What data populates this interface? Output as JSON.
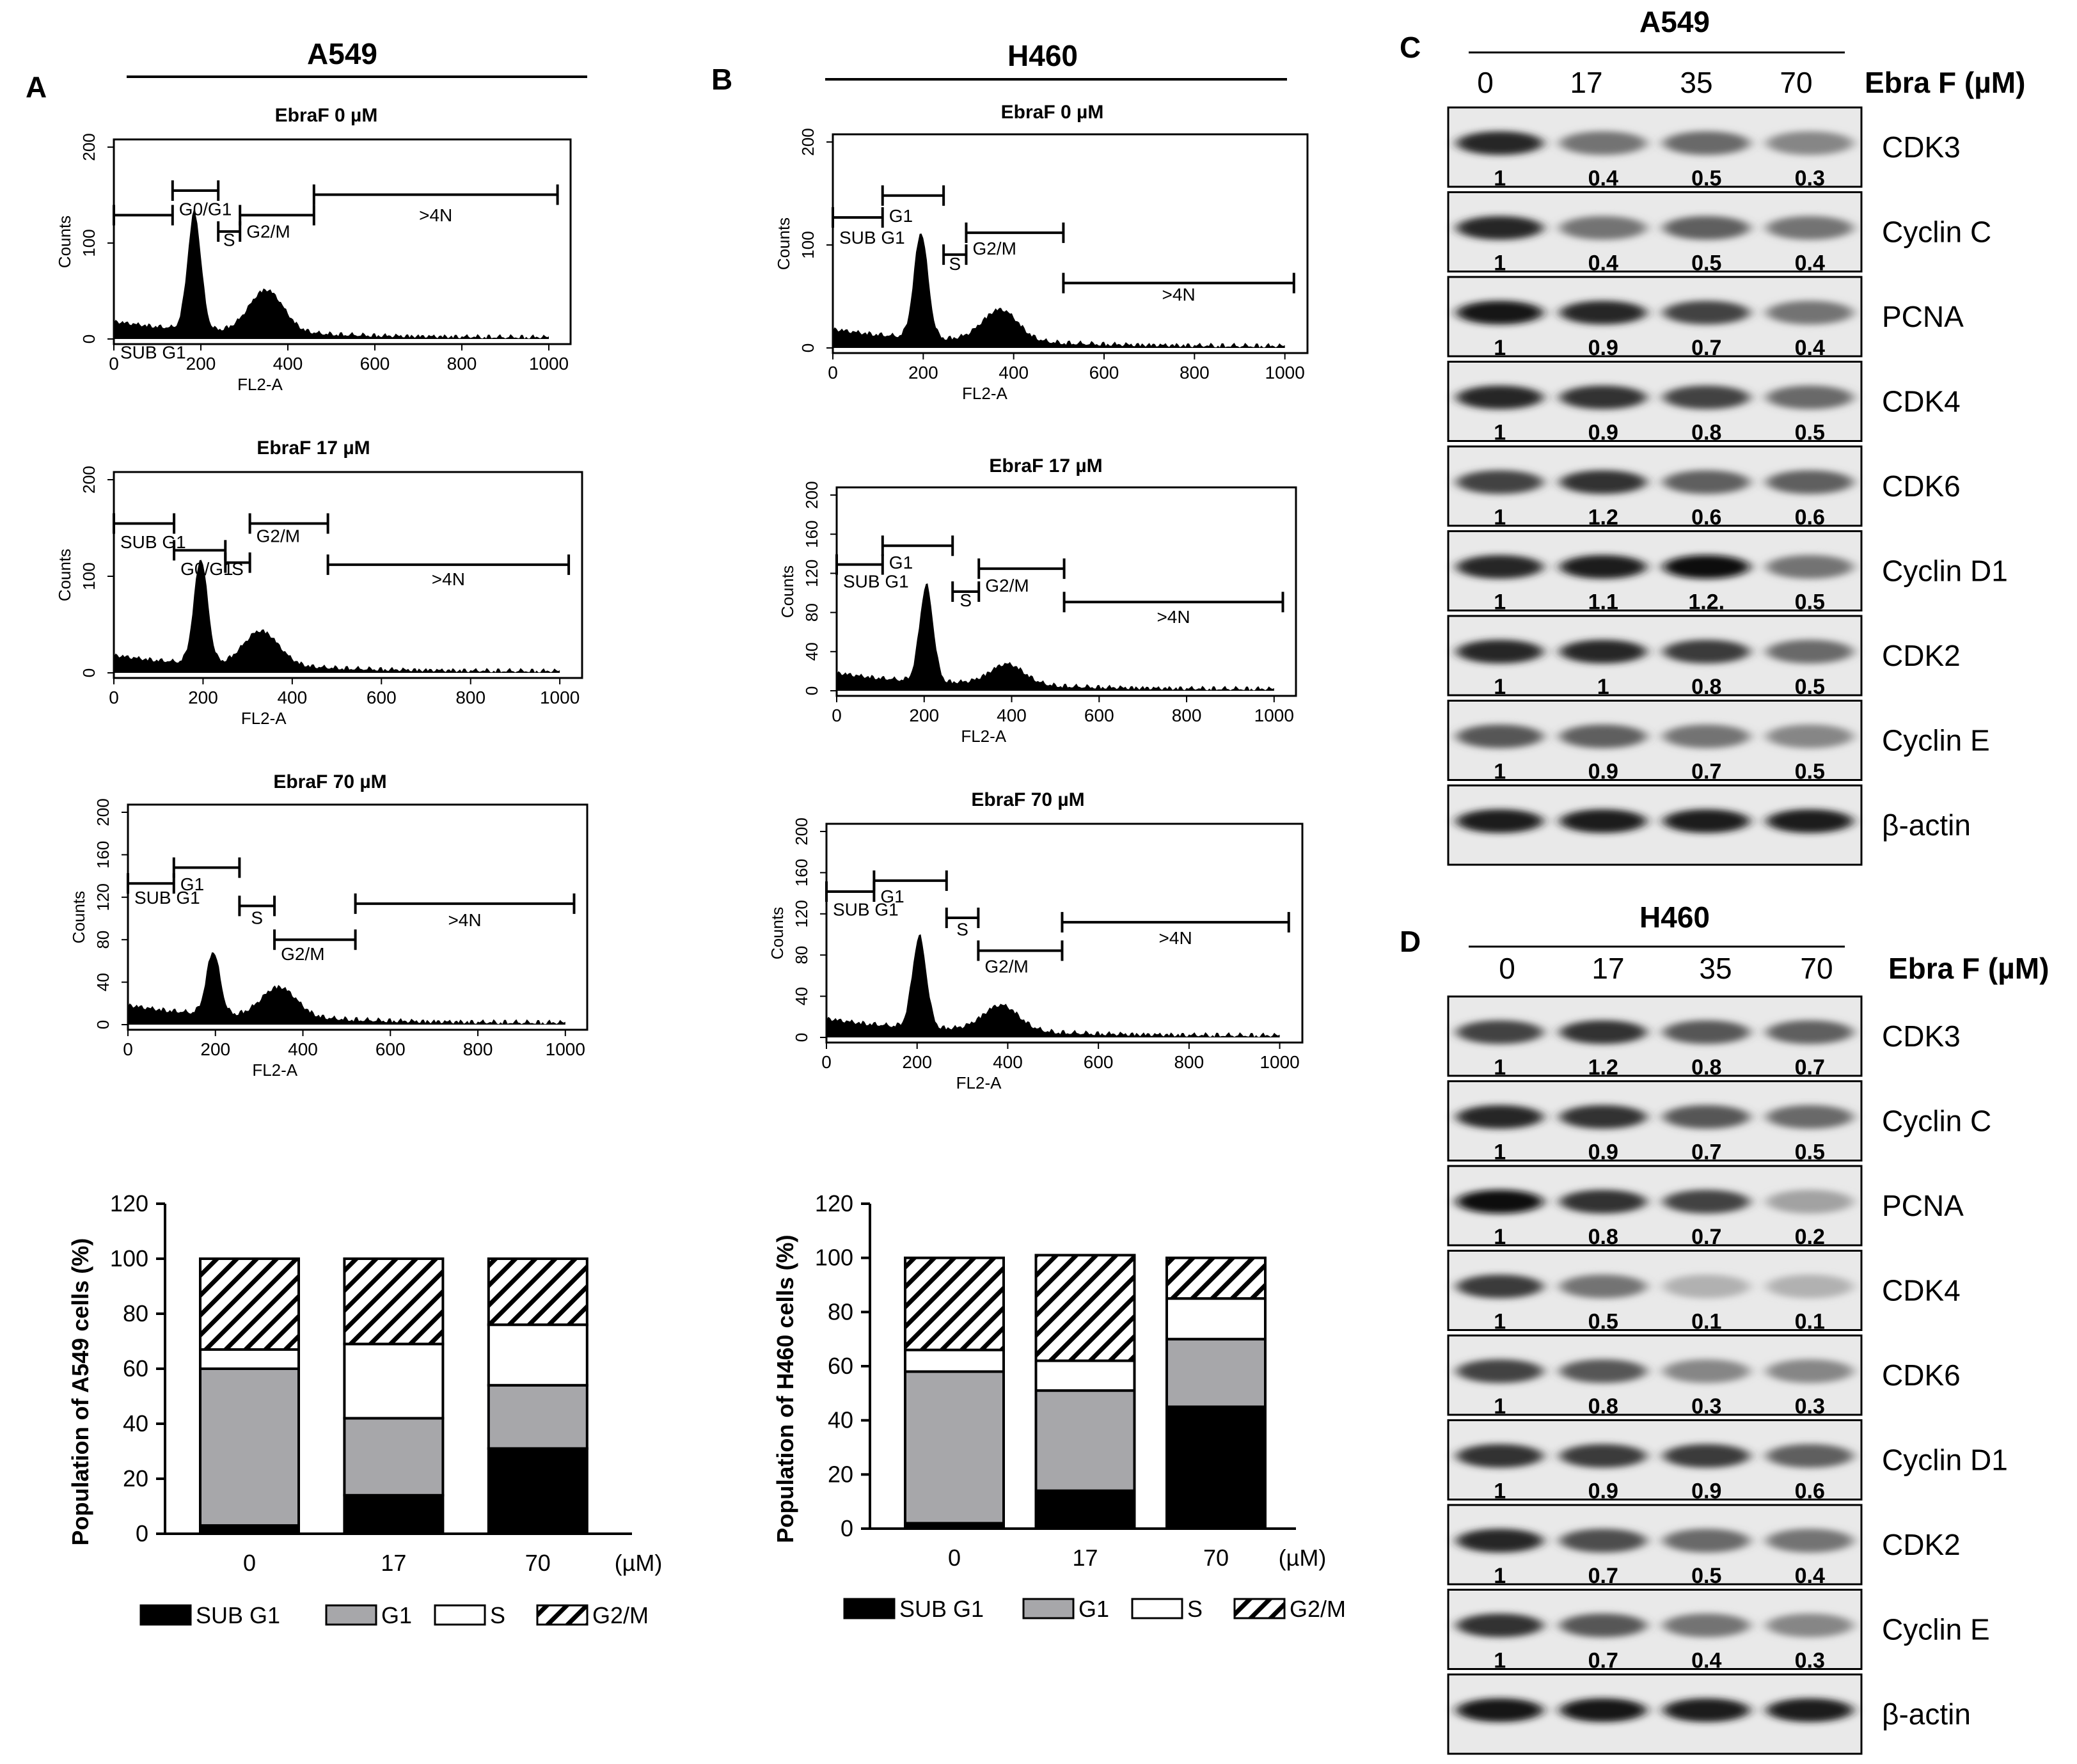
{
  "panels": {
    "A": {
      "label": "A",
      "cell_line": "A549"
    },
    "B": {
      "label": "B",
      "cell_line": "H460"
    },
    "C": {
      "label": "C",
      "cell_line": "A549"
    },
    "D": {
      "label": "D",
      "cell_line": "H460"
    }
  },
  "histograms": {
    "x_label": "FL2-A",
    "y_label": "Counts",
    "x_ticks": [
      "0",
      "200",
      "400",
      "600",
      "800",
      "1000"
    ],
    "A": [
      {
        "title": "EbraF 0 µM",
        "y_ticks": [
          "0",
          "100",
          "200"
        ],
        "gates": [
          "SUB G1",
          "G0/G1",
          "S",
          "G2/M",
          ">4N"
        ],
        "g1_peak": 185,
        "g2_peak": 350,
        "g1_height": 0.62,
        "g2_height": 0.22
      },
      {
        "title": "EbraF 17 µM",
        "y_ticks": [
          "0",
          "100",
          "200"
        ],
        "gates": [
          "SUB G1",
          "G0/G1",
          "S",
          "G2/M",
          ">4N"
        ],
        "g1_peak": 195,
        "g2_peak": 330,
        "g1_height": 0.55,
        "g2_height": 0.18
      },
      {
        "title": "EbraF 70 µM",
        "y_ticks": [
          "0",
          "40",
          "80",
          "120",
          "160",
          "200"
        ],
        "gates": [
          "SUB G1",
          "G1",
          "S",
          "G2/M",
          ">4N"
        ],
        "g1_peak": 195,
        "g2_peak": 345,
        "g1_height": 0.3,
        "g2_height": 0.14
      }
    ],
    "B": [
      {
        "title": "EbraF 0 µM",
        "y_ticks": [
          "0",
          "100",
          "200"
        ],
        "gates": [
          "SUB G1",
          "G1",
          "S",
          "G2/M",
          ">4N"
        ],
        "g1_peak": 195,
        "g2_peak": 370,
        "g1_height": 0.52,
        "g2_height": 0.15
      },
      {
        "title": "EbraF 17 µM",
        "y_ticks": [
          "0",
          "40",
          "80",
          "120",
          "160",
          "200"
        ],
        "gates": [
          "SUB G1",
          "G1",
          "S",
          "G2/M",
          ">4N"
        ],
        "g1_peak": 205,
        "g2_peak": 390,
        "g1_height": 0.5,
        "g2_height": 0.1
      },
      {
        "title": "EbraF 70 µM",
        "y_ticks": [
          "0",
          "40",
          "80",
          "120",
          "160",
          "200"
        ],
        "gates": [
          "SUB G1",
          "G1",
          "S",
          "G2/M",
          ">4N"
        ],
        "g1_peak": 205,
        "g2_peak": 385,
        "g1_height": 0.45,
        "g2_height": 0.12
      }
    ]
  },
  "chart_data": [
    {
      "type": "bar",
      "stacked": true,
      "title": "",
      "xlabel": "",
      "unit_label": "(µM)",
      "ylabel": "Population of A549 cells (%)",
      "ylim": [
        0,
        120
      ],
      "y_ticks": [
        "0",
        "20",
        "40",
        "60",
        "80",
        "100",
        "120"
      ],
      "categories": [
        "0",
        "17",
        "70"
      ],
      "series": [
        {
          "name": "SUB G1",
          "values": [
            3,
            14,
            31
          ]
        },
        {
          "name": "G1",
          "values": [
            57,
            28,
            23
          ]
        },
        {
          "name": "S",
          "values": [
            7,
            27,
            22
          ]
        },
        {
          "name": "G2/M",
          "values": [
            33,
            31,
            24
          ]
        }
      ],
      "legend": [
        "SUB G1",
        "G1",
        "S",
        "G2/M"
      ]
    },
    {
      "type": "bar",
      "stacked": true,
      "title": "",
      "xlabel": "",
      "unit_label": "(µM)",
      "ylabel": "Population of H460 cells (%)",
      "ylim": [
        0,
        120
      ],
      "y_ticks": [
        "0",
        "20",
        "40",
        "60",
        "80",
        "100",
        "120"
      ],
      "categories": [
        "0",
        "17",
        "70"
      ],
      "series": [
        {
          "name": "SUB G1",
          "values": [
            2,
            14,
            45
          ]
        },
        {
          "name": "G1",
          "values": [
            56,
            37,
            25
          ]
        },
        {
          "name": "S",
          "values": [
            8,
            11,
            15
          ]
        },
        {
          "name": "G2/M",
          "values": [
            34,
            39,
            15
          ]
        }
      ],
      "legend": [
        "SUB G1",
        "G1",
        "S",
        "G2/M"
      ]
    }
  ],
  "westerns": {
    "dose_header": "Ebra F (µM)",
    "doses": [
      "0",
      "17",
      "35",
      "70"
    ],
    "C": {
      "proteins": [
        {
          "name": "CDK3",
          "values": [
            "1",
            "0.4",
            "0.5",
            "0.3"
          ],
          "intensity": [
            0.85,
            0.45,
            0.5,
            0.35
          ]
        },
        {
          "name": "Cyclin C",
          "values": [
            "1",
            "0.4",
            "0.5",
            "0.4"
          ],
          "intensity": [
            0.85,
            0.45,
            0.55,
            0.45
          ]
        },
        {
          "name": "PCNA",
          "values": [
            "1",
            "0.9",
            "0.7",
            "0.4"
          ],
          "intensity": [
            0.95,
            0.85,
            0.7,
            0.45
          ]
        },
        {
          "name": "CDK4",
          "values": [
            "1",
            "0.9",
            "0.8",
            "0.5"
          ],
          "intensity": [
            0.85,
            0.8,
            0.7,
            0.5
          ]
        },
        {
          "name": "CDK6",
          "values": [
            "1",
            "1.2",
            "0.6",
            "0.6"
          ],
          "intensity": [
            0.7,
            0.8,
            0.55,
            0.55
          ]
        },
        {
          "name": "Cyclin D1",
          "values": [
            "1",
            "1.1",
            "1.2.",
            "0.5"
          ],
          "intensity": [
            0.85,
            0.9,
            1.0,
            0.45
          ]
        },
        {
          "name": "CDK2",
          "values": [
            "1",
            "1",
            "0.8",
            "0.5"
          ],
          "intensity": [
            0.85,
            0.85,
            0.75,
            0.5
          ]
        },
        {
          "name": "Cyclin E",
          "values": [
            "1",
            "0.9",
            "0.7",
            "0.5"
          ],
          "intensity": [
            0.6,
            0.55,
            0.45,
            0.35
          ]
        },
        {
          "name": "β-actin",
          "values": null,
          "intensity": [
            0.9,
            0.9,
            0.9,
            0.9
          ]
        }
      ]
    },
    "D": {
      "proteins": [
        {
          "name": "CDK3",
          "values": [
            "1",
            "1.2",
            "0.8",
            "0.7"
          ],
          "intensity": [
            0.7,
            0.8,
            0.6,
            0.55
          ]
        },
        {
          "name": "Cyclin C",
          "values": [
            "1",
            "0.9",
            "0.7",
            "0.5"
          ],
          "intensity": [
            0.85,
            0.8,
            0.6,
            0.5
          ]
        },
        {
          "name": "PCNA",
          "values": [
            "1",
            "0.8",
            "0.7",
            "0.2"
          ],
          "intensity": [
            1.0,
            0.8,
            0.7,
            0.2
          ]
        },
        {
          "name": "CDK4",
          "values": [
            "1",
            "0.5",
            "0.1",
            "0.1"
          ],
          "intensity": [
            0.75,
            0.45,
            0.12,
            0.12
          ]
        },
        {
          "name": "CDK6",
          "values": [
            "1",
            "0.8",
            "0.3",
            "0.3"
          ],
          "intensity": [
            0.7,
            0.6,
            0.35,
            0.35
          ]
        },
        {
          "name": "Cyclin D1",
          "values": [
            "1",
            "0.9",
            "0.9",
            "0.6"
          ],
          "intensity": [
            0.8,
            0.75,
            0.75,
            0.55
          ]
        },
        {
          "name": "CDK2",
          "values": [
            "1",
            "0.7",
            "0.5",
            "0.4"
          ],
          "intensity": [
            0.85,
            0.65,
            0.5,
            0.45
          ]
        },
        {
          "name": "Cyclin E",
          "values": [
            "1",
            "0.7",
            "0.4",
            "0.3"
          ],
          "intensity": [
            0.8,
            0.6,
            0.45,
            0.35
          ]
        },
        {
          "name": "β-actin",
          "values": null,
          "intensity": [
            0.95,
            0.95,
            0.9,
            0.9
          ]
        }
      ]
    }
  }
}
